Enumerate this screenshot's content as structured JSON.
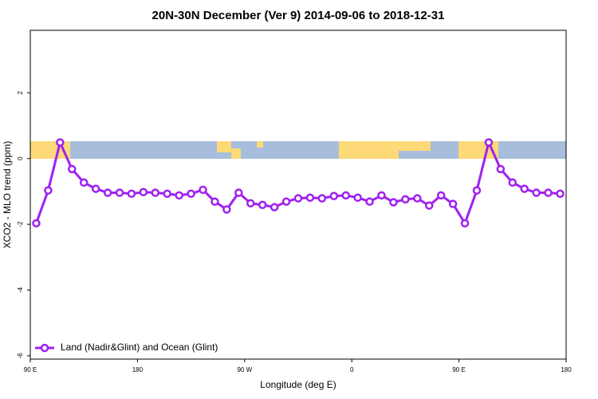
{
  "chart_data": {
    "type": "line",
    "title": "20N-30N December (Ver 9)   2014-09-06 to 2018-12-31",
    "x_label": "Longitude (deg E)",
    "y_label": "XCO2 - MLO trend (ppm)",
    "x": [
      95,
      105,
      115,
      125,
      135,
      145,
      155,
      165,
      175,
      185,
      195,
      205,
      215,
      225,
      235,
      245,
      255,
      265,
      275,
      285,
      295,
      305,
      315,
      325,
      335,
      345,
      355,
      365,
      375,
      385,
      395,
      405,
      415,
      425,
      435,
      445,
      455,
      465,
      475,
      485,
      495,
      505,
      515,
      525,
      535
    ],
    "series": [
      {
        "name": "Land (Nadir&Glint) and Ocean (Glint)",
        "color": "#a020f0",
        "values": [
          -1.97,
          -0.97,
          0.49,
          -0.32,
          -0.73,
          -0.92,
          -1.04,
          -1.04,
          -1.07,
          -1.02,
          -1.04,
          -1.07,
          -1.12,
          -1.07,
          -0.95,
          -1.31,
          -1.55,
          -1.04,
          -1.36,
          -1.41,
          -1.48,
          -1.31,
          -1.21,
          -1.19,
          -1.21,
          -1.14,
          -1.12,
          -1.19,
          -1.31,
          -1.12,
          -1.33,
          -1.24,
          -1.21,
          -1.43,
          -1.12,
          -1.38,
          -1.97,
          -0.97,
          0.49,
          -0.32,
          -0.73,
          -0.92,
          -1.04,
          -1.04,
          -1.07
        ]
      }
    ],
    "xlim": [
      90,
      540
    ],
    "xticks": [
      {
        "value": 90,
        "label": "90 E"
      },
      180,
      {
        "value": 270,
        "label": "90 W"
      },
      {
        "value": 360,
        "label": "0"
      },
      {
        "value": 450,
        "label": "90 E"
      },
      {
        "value": 540,
        "label": "180"
      }
    ],
    "ylim": [
      -6.1,
      3.9
    ],
    "yticks": [
      -6,
      -4,
      -2,
      0,
      2
    ],
    "legend": "bottom-left"
  }
}
